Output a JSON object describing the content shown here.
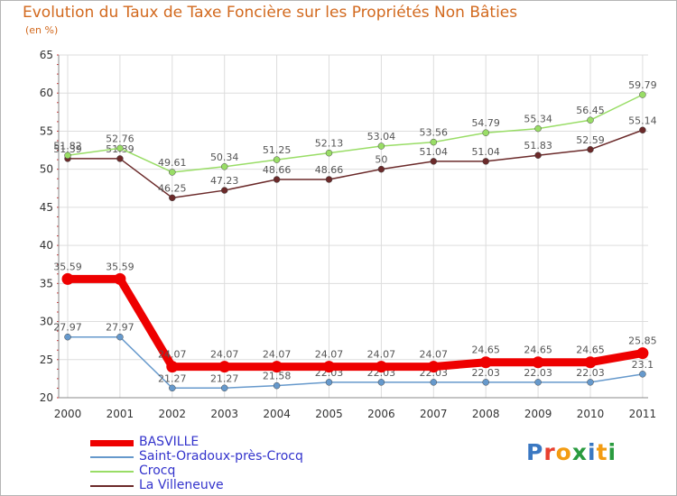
{
  "header": {
    "title": "Evolution du Taux de Taxe Foncière sur les Propriétés Non Bâties",
    "unit": "(en %)"
  },
  "logo": {
    "text": "Proxiti",
    "letters": [
      "P",
      "r",
      "o",
      "x",
      "i",
      "t",
      "i"
    ],
    "colors": [
      "#3a78c2",
      "#e8402f",
      "#f39c12",
      "#2a9b3f",
      "#3a78c2",
      "#f39c12",
      "#2a9b3f"
    ]
  },
  "chart_data": {
    "type": "line",
    "title": "Evolution du Taux de Taxe Foncière sur les Propriétés Non Bâties",
    "ylabel": "(en %)",
    "xlabel": "",
    "ylim": [
      20,
      65
    ],
    "yticks": [
      20,
      25,
      30,
      35,
      40,
      45,
      50,
      55,
      60,
      65
    ],
    "grid": true,
    "legend_position": "bottom-left",
    "categories": [
      "2000",
      "2001",
      "2002",
      "2003",
      "2004",
      "2005",
      "2006",
      "2007",
      "2008",
      "2009",
      "2010",
      "2011"
    ],
    "series": [
      {
        "name": "BASVILLE",
        "color": "#ee0000",
        "values": [
          35.59,
          35.59,
          24.07,
          24.07,
          24.07,
          24.07,
          24.07,
          24.07,
          24.65,
          24.65,
          24.65,
          25.85
        ],
        "labels": [
          "35.59",
          "35.59",
          "24.07",
          "24.07",
          "24.07",
          "24.07",
          "24.07",
          "24.07",
          "24.65",
          "24.65",
          "24.65",
          "25.85"
        ]
      },
      {
        "name": "Saint-Oradoux-près-Crocq",
        "color": "#6699cc",
        "values": [
          27.97,
          27.97,
          21.27,
          21.27,
          21.58,
          22.03,
          22.03,
          22.03,
          22.03,
          22.03,
          22.03,
          23.1
        ],
        "labels": [
          "27.97",
          "27.97",
          "21.27",
          "21.27",
          "21.58",
          "22.03",
          "22.03",
          "22.03",
          "22.03",
          "22.03",
          "22.03",
          "23.1"
        ]
      },
      {
        "name": "Crocq",
        "color": "#99dd66",
        "values": [
          51.82,
          52.76,
          49.61,
          50.34,
          51.25,
          52.13,
          53.04,
          53.56,
          54.79,
          55.34,
          56.45,
          59.79
        ],
        "labels": [
          "51.82",
          "52.76",
          "49.61",
          "50.34",
          "51.25",
          "52.13",
          "53.04",
          "53.56",
          "54.79",
          "55.34",
          "56.45",
          "59.79"
        ]
      },
      {
        "name": "La Villeneuve",
        "color": "#6b2a2a",
        "values": [
          51.39,
          51.39,
          46.25,
          47.23,
          48.66,
          48.66,
          50,
          51.04,
          51.04,
          51.83,
          52.59,
          55.14
        ],
        "labels": [
          "51.39",
          "51.39",
          "46.25",
          "47.23",
          "48.66",
          "48.66",
          "50",
          "51.04",
          "51.04",
          "51.83",
          "52.59",
          "55.14"
        ]
      }
    ]
  }
}
